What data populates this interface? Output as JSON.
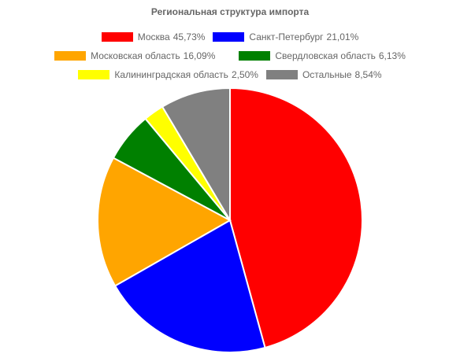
{
  "chart_data": {
    "type": "pie",
    "title": "Региональная структура импорта",
    "categories": [
      "Москва",
      "Санкт-Петербург",
      "Московская область",
      "Свердловская область",
      "Калининградская область",
      "Остальные"
    ],
    "values": [
      45.73,
      21.01,
      16.09,
      6.13,
      2.5,
      8.54
    ],
    "value_labels": [
      "45,73%",
      "21,01%",
      "16,09%",
      "6,13%",
      "2,50%",
      "8,54%"
    ],
    "colors": [
      "#ff0000",
      "#0000ff",
      "#ffa500",
      "#008000",
      "#ffff00",
      "#808080"
    ],
    "legend": "top"
  }
}
